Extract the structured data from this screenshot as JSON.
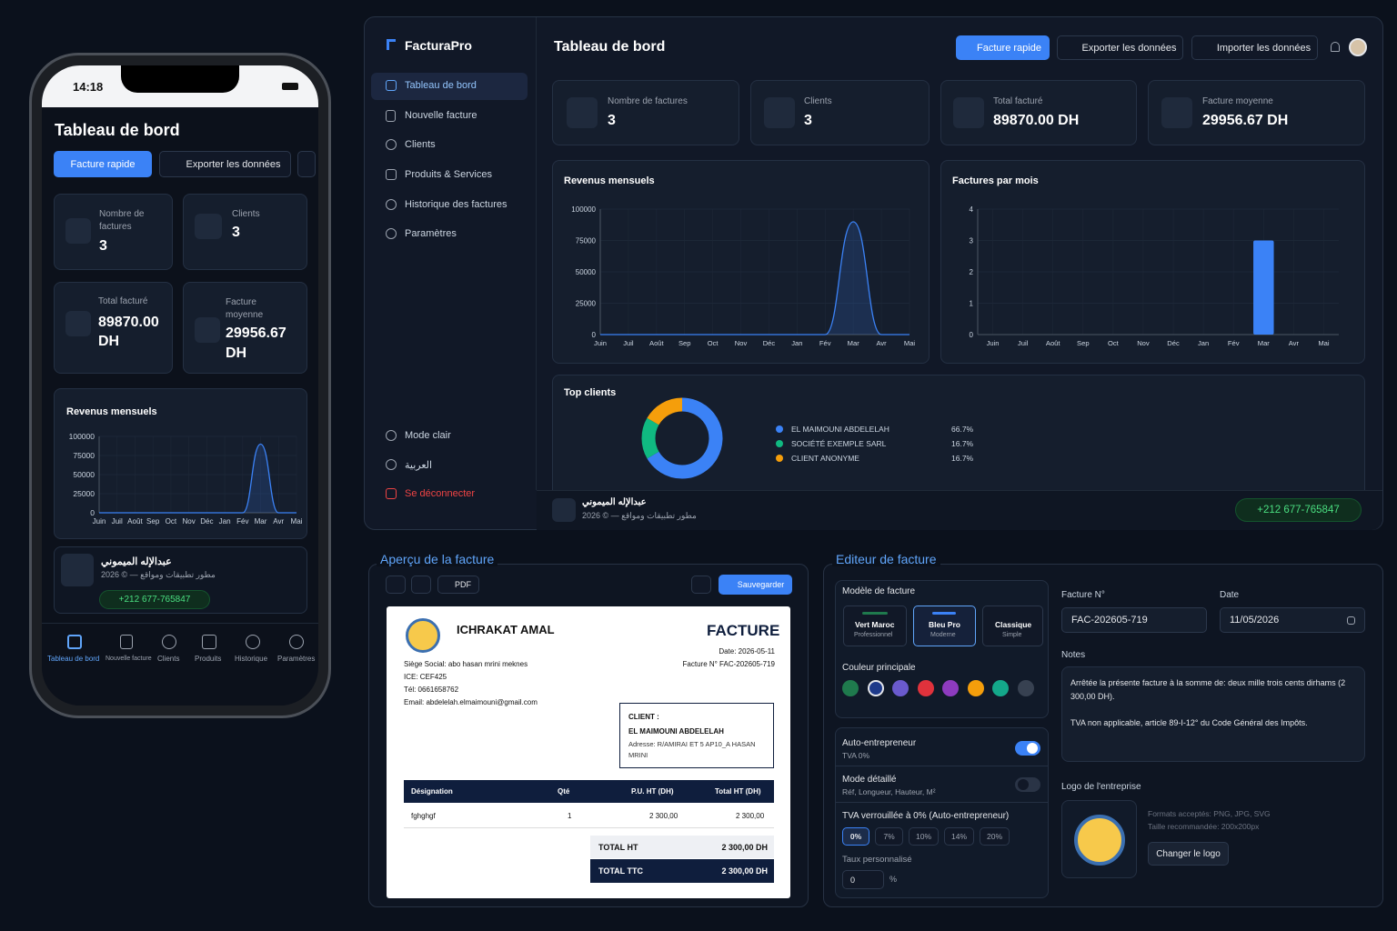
{
  "phone": {
    "time": "14:18",
    "title": "Tableau de bord",
    "quick": "Facture rapide",
    "export": "Exporter les données",
    "stats": [
      {
        "label": "Nombre de factures",
        "value": "3"
      },
      {
        "label": "Clients",
        "value": "3"
      },
      {
        "label": "Total facturé",
        "value": "89870.00 DH"
      },
      {
        "label": "Facture moyenne",
        "value": "29956.67 DH"
      }
    ],
    "dev_name": "عبدالإله الميموني",
    "dev_sub": "2026 © — مطور تطبيقات ومواقع",
    "dev_phone": "+212 677-765847",
    "nav": [
      "Tableau de bord",
      "Nouvelle facture",
      "Clients",
      "Produits",
      "Historique",
      "Paramètres"
    ]
  },
  "app": {
    "brand": "FacturaPro",
    "menu": [
      "Tableau de bord",
      "Nouvelle facture",
      "Clients",
      "Produits & Services",
      "Historique des factures",
      "Paramètres"
    ],
    "menu_bottom": [
      "Mode clair",
      "العربية",
      "Se déconnecter"
    ],
    "title": "Tableau de bord",
    "actions": [
      "Facture rapide",
      "Exporter les données",
      "Importer les données"
    ],
    "stats": [
      {
        "label": "Nombre de factures",
        "value": "3"
      },
      {
        "label": "Clients",
        "value": "3"
      },
      {
        "label": "Total facturé",
        "value": "89870.00 DH"
      },
      {
        "label": "Facture moyenne",
        "value": "29956.67 DH"
      }
    ],
    "dev_name": "عبدالإله الميموني",
    "dev_sub": "2026 © — مطور تطبيقات ومواقع",
    "dev_phone": "+212 677-765847"
  },
  "chart_data": [
    {
      "type": "area",
      "title": "Revenus mensuels",
      "categories": [
        "Juin",
        "Juil",
        "Août",
        "Sep",
        "Oct",
        "Nov",
        "Déc",
        "Jan",
        "Fév",
        "Mar",
        "Avr",
        "Mai"
      ],
      "values": [
        0,
        0,
        0,
        0,
        0,
        0,
        0,
        0,
        0,
        89870,
        0,
        0
      ],
      "color": "#3b82f6",
      "ylim": [
        0,
        100000
      ],
      "yticks": [
        0,
        25000,
        50000,
        75000,
        100000
      ],
      "grid": true
    },
    {
      "type": "bar",
      "title": "Factures par mois",
      "categories": [
        "Juin",
        "Juil",
        "Août",
        "Sep",
        "Oct",
        "Nov",
        "Déc",
        "Jan",
        "Fév",
        "Mar",
        "Avr",
        "Mai"
      ],
      "values": [
        0,
        0,
        0,
        0,
        0,
        0,
        0,
        0,
        0,
        3,
        0,
        0
      ],
      "color": "#3b82f6",
      "ylim": [
        0,
        4
      ],
      "yticks": [
        0,
        1,
        2,
        3,
        4
      ],
      "grid": true
    },
    {
      "type": "pie",
      "title": "Top clients",
      "categories": [
        "EL MAIMOUNI ABDELELAH",
        "SOCIÉTÉ EXEMPLE SARL",
        "CLIENT ANONYME"
      ],
      "values": [
        66.7,
        16.7,
        16.7
      ],
      "value_labels": [
        "66.7%",
        "16.7%",
        "16.7%"
      ],
      "colors": [
        "#3b82f6",
        "#10b981",
        "#f59e0b"
      ]
    }
  ],
  "preview": {
    "title": "Aperçu de la facture",
    "pdf": "PDF",
    "save": "Sauvegarder",
    "company": "ICHRAKAT AMAL",
    "doc": "FACTURE",
    "date": "Date: 2026-05-11",
    "number": "Facture N° FAC-202605-719",
    "seller": [
      "Siège Social: abo hasan mrini meknes",
      "ICE: CEF425",
      "Tél: 0661658762",
      "Email: abdelelah.elmaimouni@gmail.com"
    ],
    "client_label": "CLIENT :",
    "client_name": "EL MAIMOUNI ABDELELAH",
    "client_addr": "Adresse: R/AMIRAI ET 5 AP10_A HASAN MRINI",
    "table": {
      "header": [
        "Désignation",
        "Qté",
        "P.U. HT (DH)",
        "Total HT (DH)"
      ],
      "rows": [
        [
          "fghghgf",
          "1",
          "2 300,00",
          "2 300,00"
        ]
      ]
    },
    "totals": [
      [
        "TOTAL HT",
        "2 300,00 DH"
      ],
      [
        "TOTAL TTC",
        "2 300,00 DH"
      ]
    ]
  },
  "editor": {
    "title": "Editeur de facture",
    "model_label": "Modèle de facture",
    "models": [
      {
        "name": "Vert Maroc",
        "sub": "Professionnel"
      },
      {
        "name": "Bleu Pro",
        "sub": "Moderne"
      },
      {
        "name": "Classique",
        "sub": "Simple"
      }
    ],
    "color_label": "Couleur principale",
    "colors": [
      "#1f7a4d",
      "#1e3a8a",
      "#6a5acd",
      "#e0323c",
      "#8e3bbf",
      "#f59e0b",
      "#14a88a",
      "#374151"
    ],
    "auto": {
      "label": "Auto-entrepreneur",
      "sub": "TVA 0%"
    },
    "detail": {
      "label": "Mode détaillé",
      "sub": "Réf, Longueur, Hauteur, M²"
    },
    "tva_label": "TVA verrouillée à 0% (Auto-entrepreneur)",
    "tva_options": [
      "0%",
      "7%",
      "10%",
      "14%",
      "20%"
    ],
    "custom_label": "Taux personnalisé",
    "custom_value": "0",
    "custom_unit": "%",
    "number_label": "Facture N°",
    "number": "FAC-202605-719",
    "date_label": "Date",
    "date": "11/05/2026",
    "notes_label": "Notes",
    "notes": [
      "Arrêtée la présente facture à la somme de: deux mille trois cents dirhams (2 300,00 DH).",
      "TVA non applicable, article 89-I-12° du Code Général des Impôts."
    ],
    "logo_label": "Logo de l'entreprise",
    "logo_formats": "Formats acceptés: PNG, JPG, SVG",
    "logo_size": "Taille recommandée: 200x200px",
    "logo_button": "Changer le logo"
  }
}
